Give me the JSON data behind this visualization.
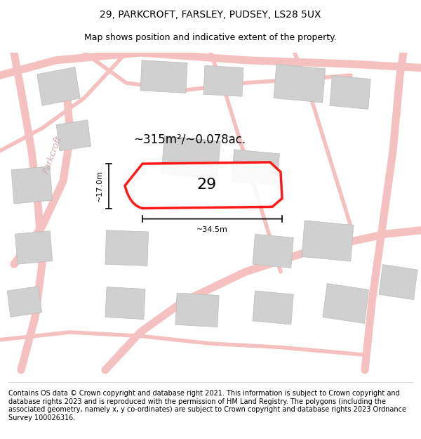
{
  "title": "29, PARKCROFT, FARSLEY, PUDSEY, LS28 5UX",
  "subtitle": "Map shows position and indicative extent of the property.",
  "footnote": "Contains OS data © Crown copyright and database right 2021. This information is subject to Crown copyright and database rights 2023 and is reproduced with the permission of HM Land Registry. The polygons (including the associated geometry, namely x, y co-ordinates) are subject to Crown copyright and database rights 2023 Ordnance Survey 100026316.",
  "area_label": "~315m²/~0.078ac.",
  "width_label": "~34.5m",
  "height_label": "~17.0m",
  "plot_number": "29",
  "bg_color": "#f5f5f5",
  "map_bg": "#f0f0f0",
  "road_color": "#f5c0c0",
  "building_color": "#d8d8d8",
  "plot_outline_color": "#ff0000",
  "plot_fill_color": "#ffffff",
  "plot_fill_alpha": 0.7,
  "street_name": "Parkcroft",
  "title_fontsize": 10,
  "subtitle_fontsize": 9,
  "footnote_fontsize": 7
}
